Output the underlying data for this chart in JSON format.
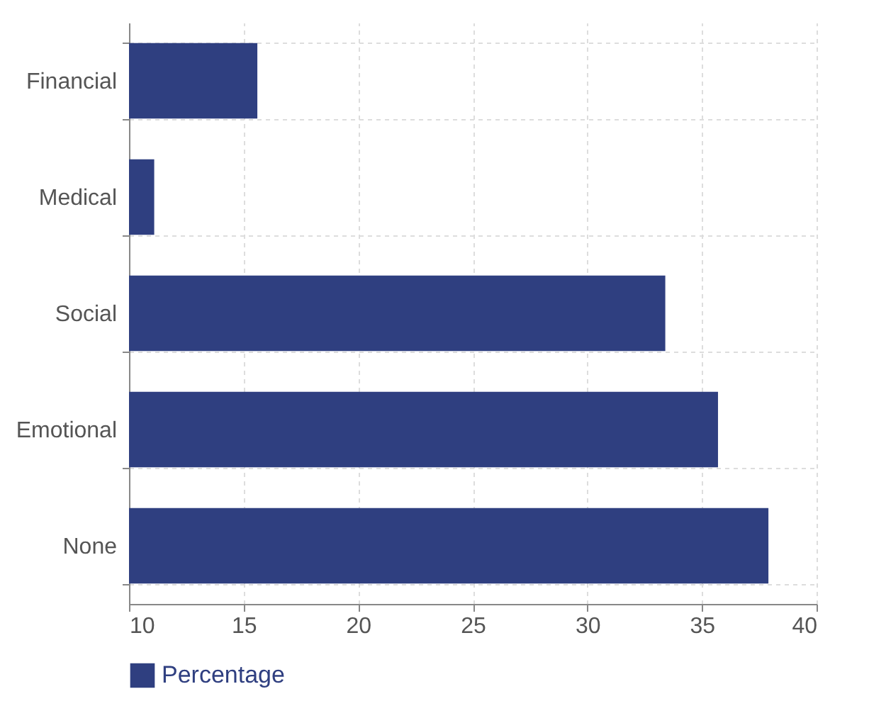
{
  "chart_data": {
    "type": "bar",
    "orientation": "horizontal",
    "categories": [
      "Financial",
      "Medical",
      "Social",
      "Emotional",
      "None"
    ],
    "series": [
      {
        "name": "Percentage",
        "color": "#2f3f80",
        "values": [
          15.6,
          11.1,
          33.4,
          35.7,
          37.9
        ]
      }
    ],
    "xlim": [
      10,
      40
    ],
    "xticks": [
      10,
      15,
      20,
      25,
      30,
      35,
      40
    ],
    "grid": true,
    "legend": "bottom"
  }
}
